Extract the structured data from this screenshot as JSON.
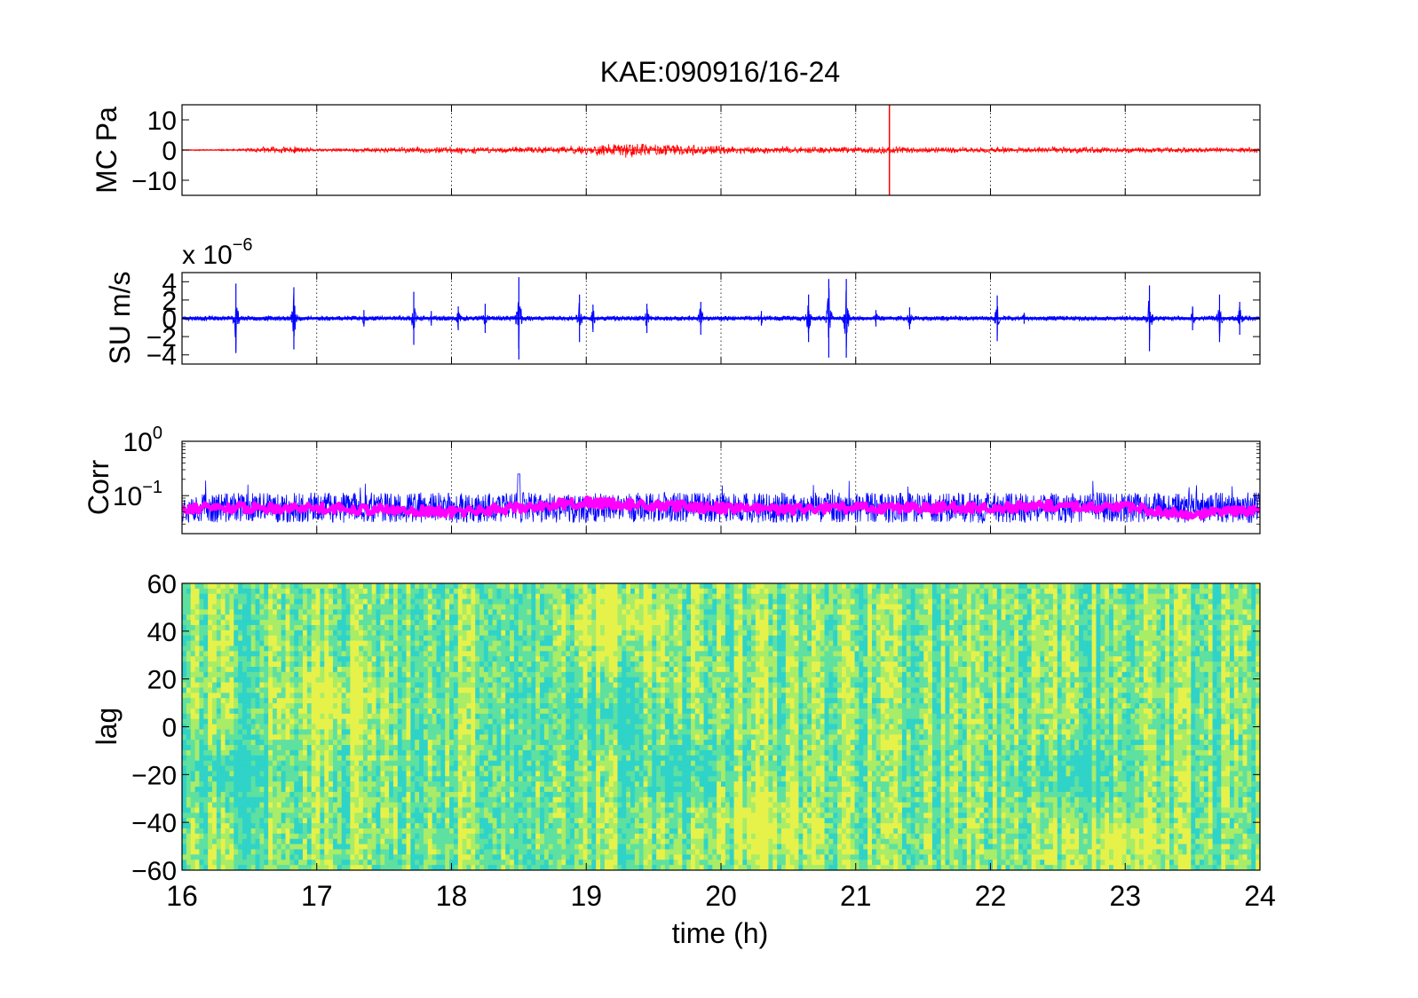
{
  "figure": {
    "title": "KAE:090916/16-24",
    "xlabel": "time (h)"
  },
  "chart_data": [
    {
      "type": "line",
      "panel": "pressure",
      "ylabel": "MC Pa",
      "xlim": [
        16,
        24
      ],
      "ylim": [
        -15,
        15
      ],
      "yticks": [
        "10",
        "0",
        "−10"
      ],
      "ytick_values": [
        10,
        0,
        -10
      ],
      "grid": "vertical dotted",
      "series": [
        {
          "color": "#ff0000",
          "envelope_x": [
            16,
            16.4,
            16.6,
            16.8,
            17,
            17.5,
            18,
            18.5,
            19,
            19.3,
            19.6,
            20,
            20.5,
            21,
            21.2,
            21.3,
            21.5,
            22,
            22.5,
            23,
            23.5,
            24
          ],
          "envelope_y": [
            0.2,
            0.4,
            1.2,
            1.5,
            0.6,
            1.0,
            1.3,
            1.1,
            1.8,
            2.8,
            2.2,
            1.5,
            1.2,
            1.3,
            1.4,
            1.3,
            1.1,
            1.0,
            1.2,
            1.1,
            1.0,
            1.0
          ]
        }
      ],
      "annotations": [
        {
          "kind": "spike",
          "x": 21.25,
          "ymin": -15,
          "ymax": 15
        }
      ]
    },
    {
      "type": "line",
      "panel": "velocity",
      "ylabel": "SU m/s",
      "scale_label": "x 10",
      "scale_exponent": "−6",
      "xlim": [
        16,
        24
      ],
      "ylim": [
        -5,
        5
      ],
      "yticks": [
        "4",
        "2",
        "0",
        "−2",
        "−4"
      ],
      "ytick_values": [
        4,
        2,
        0,
        -2,
        -4
      ],
      "grid": "vertical dotted",
      "series": [
        {
          "color": "#0000ff",
          "baseline_amplitude": 0.25,
          "bursts": [
            {
              "x": 16.4,
              "amp": 3.8
            },
            {
              "x": 16.83,
              "amp": 3.4
            },
            {
              "x": 17.35,
              "amp": 0.9
            },
            {
              "x": 17.72,
              "amp": 2.9
            },
            {
              "x": 17.85,
              "amp": 0.8
            },
            {
              "x": 18.05,
              "amp": 1.3
            },
            {
              "x": 18.25,
              "amp": 1.6
            },
            {
              "x": 18.5,
              "amp": 4.5
            },
            {
              "x": 18.95,
              "amp": 2.6
            },
            {
              "x": 19.05,
              "amp": 1.5
            },
            {
              "x": 19.45,
              "amp": 1.6
            },
            {
              "x": 19.85,
              "amp": 1.8
            },
            {
              "x": 20.3,
              "amp": 0.8
            },
            {
              "x": 20.65,
              "amp": 2.6
            },
            {
              "x": 20.8,
              "amp": 4.3
            },
            {
              "x": 20.93,
              "amp": 4.3
            },
            {
              "x": 21.15,
              "amp": 0.9
            },
            {
              "x": 21.4,
              "amp": 1.2
            },
            {
              "x": 22.05,
              "amp": 2.5
            },
            {
              "x": 22.25,
              "amp": 0.6
            },
            {
              "x": 23.18,
              "amp": 3.6
            },
            {
              "x": 23.5,
              "amp": 1.3
            },
            {
              "x": 23.7,
              "amp": 2.6
            },
            {
              "x": 23.85,
              "amp": 1.8
            }
          ]
        }
      ]
    },
    {
      "type": "line",
      "panel": "correlation",
      "ylabel": "Corr",
      "yscale": "log",
      "xlim": [
        16,
        24
      ],
      "ylim": [
        0.02,
        1
      ],
      "yticks": [
        {
          "base": "10",
          "exp": "0"
        },
        {
          "base": "10",
          "exp": "−1"
        }
      ],
      "ytick_values": [
        1,
        0.1
      ],
      "grid": "vertical dotted",
      "series": [
        {
          "color": "#0000ff",
          "description_level": 0.06,
          "spike_x": 18.5,
          "spike_value": 0.25
        },
        {
          "color": "#ff00ff",
          "smoothed_x": [
            16,
            17,
            17.5,
            18,
            18.5,
            19,
            19.5,
            20,
            20.5,
            21,
            21.5,
            22,
            22.5,
            23,
            23.5,
            24
          ],
          "smoothed_y": [
            0.06,
            0.06,
            0.055,
            0.05,
            0.06,
            0.075,
            0.065,
            0.06,
            0.055,
            0.06,
            0.06,
            0.06,
            0.065,
            0.06,
            0.045,
            0.055
          ]
        }
      ]
    },
    {
      "type": "heatmap",
      "panel": "lag",
      "ylabel": "lag",
      "xlim": [
        16,
        24
      ],
      "ylim": [
        -60,
        60
      ],
      "yticks": [
        "60",
        "40",
        "20",
        "0",
        "−20",
        "−40",
        "−60"
      ],
      "ytick_values": [
        60,
        40,
        20,
        0,
        -20,
        -40,
        -60
      ],
      "xticks": [
        "16",
        "17",
        "18",
        "19",
        "20",
        "21",
        "22",
        "23",
        "24"
      ],
      "xtick_values": [
        16,
        17,
        18,
        19,
        20,
        21,
        22,
        23,
        24
      ],
      "colormap": [
        "#2fd3c8",
        "#5ee0a0",
        "#a8ec68",
        "#e6f24a"
      ],
      "features": [
        {
          "x": 19.2,
          "lag": 45,
          "tone": "yellow"
        },
        {
          "x": 19.2,
          "lag": 5,
          "tone": "cyan"
        },
        {
          "x": 16.3,
          "lag": -20,
          "tone": "cyan"
        },
        {
          "x": 17.1,
          "lag": 10,
          "tone": "yellow"
        },
        {
          "x": 19.7,
          "lag": -20,
          "tone": "cyan"
        },
        {
          "x": 22.6,
          "lag": -20,
          "tone": "cyan"
        },
        {
          "x": 20.3,
          "lag": -40,
          "tone": "yellow"
        },
        {
          "x": 22.9,
          "lag": -50,
          "tone": "yellow"
        }
      ]
    }
  ]
}
